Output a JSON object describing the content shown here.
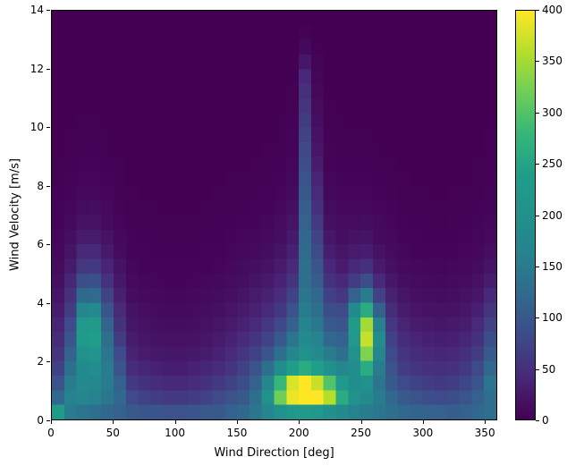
{
  "colors": {
    "background": "#ffffff",
    "axes_edge": "#000000",
    "tick_color": "#000000"
  },
  "chart_data": {
    "type": "heatmap",
    "title": "",
    "xlabel": "Wind Direction [deg]",
    "ylabel": "Wind Velocity [m/s]",
    "x_range": [
      0,
      360
    ],
    "y_range": [
      0,
      14
    ],
    "x_ticks": [
      0,
      50,
      100,
      150,
      200,
      250,
      300,
      350
    ],
    "y_ticks": [
      0,
      2,
      4,
      6,
      8,
      10,
      12,
      14
    ],
    "x_bins": 36,
    "y_bins": 28,
    "x_bin_size_deg": 10,
    "y_bin_size_ms": 0.5,
    "grid": false,
    "legend": "colorbar-right",
    "colorbar": {
      "min": 0,
      "max": 400,
      "ticks": [
        0,
        50,
        100,
        150,
        200,
        250,
        300,
        350,
        400
      ],
      "colormap": "viridis",
      "stops": [
        {
          "t": 0.0,
          "color": "#440154"
        },
        {
          "t": 0.1,
          "color": "#482878"
        },
        {
          "t": 0.2,
          "color": "#3e4a89"
        },
        {
          "t": 0.3,
          "color": "#31688e"
        },
        {
          "t": 0.4,
          "color": "#26828e"
        },
        {
          "t": 0.5,
          "color": "#21918c"
        },
        {
          "t": 0.6,
          "color": "#1f9e89"
        },
        {
          "t": 0.7,
          "color": "#35b779"
        },
        {
          "t": 0.8,
          "color": "#6ece58"
        },
        {
          "t": 0.9,
          "color": "#b5de2b"
        },
        {
          "t": 1.0,
          "color": "#fde725"
        }
      ]
    },
    "values_layout": "rows[0] is lowest velocity bin (0-0.5 m/s) rendered at bottom; columns left-to-right are direction bins 0-360 deg in 10 deg steps",
    "values": [
      [
        230,
        150,
        140,
        130,
        120,
        110,
        100,
        95,
        95,
        90,
        90,
        95,
        100,
        100,
        110,
        120,
        140,
        170,
        200,
        220,
        230,
        220,
        200,
        180,
        160,
        150,
        140,
        130,
        120,
        115,
        110,
        110,
        105,
        110,
        120,
        130
      ],
      [
        120,
        160,
        170,
        160,
        140,
        120,
        80,
        70,
        65,
        60,
        60,
        65,
        70,
        80,
        90,
        100,
        130,
        200,
        320,
        390,
        400,
        400,
        360,
        260,
        200,
        180,
        150,
        120,
        100,
        90,
        85,
        80,
        85,
        95,
        110,
        130
      ],
      [
        90,
        150,
        180,
        175,
        150,
        110,
        60,
        50,
        45,
        40,
        40,
        45,
        50,
        60,
        70,
        85,
        110,
        170,
        280,
        380,
        400,
        370,
        300,
        220,
        190,
        200,
        140,
        100,
        80,
        70,
        65,
        60,
        65,
        75,
        95,
        140
      ],
      [
        70,
        130,
        185,
        190,
        150,
        95,
        45,
        38,
        32,
        30,
        30,
        33,
        38,
        45,
        55,
        70,
        90,
        130,
        190,
        240,
        260,
        240,
        200,
        170,
        190,
        260,
        150,
        90,
        65,
        55,
        50,
        48,
        50,
        60,
        80,
        120
      ],
      [
        55,
        110,
        200,
        210,
        140,
        80,
        35,
        28,
        24,
        22,
        22,
        24,
        28,
        34,
        42,
        55,
        70,
        95,
        130,
        170,
        200,
        185,
        150,
        130,
        200,
        330,
        170,
        80,
        55,
        45,
        40,
        38,
        40,
        48,
        65,
        100
      ],
      [
        45,
        95,
        230,
        240,
        130,
        65,
        28,
        22,
        18,
        16,
        16,
        18,
        21,
        26,
        33,
        42,
        55,
        72,
        100,
        140,
        185,
        165,
        120,
        110,
        220,
        370,
        190,
        70,
        45,
        36,
        32,
        30,
        32,
        38,
        52,
        85
      ],
      [
        36,
        80,
        220,
        230,
        115,
        52,
        22,
        17,
        14,
        12,
        12,
        14,
        16,
        20,
        26,
        33,
        43,
        56,
        78,
        112,
        165,
        145,
        100,
        95,
        230,
        350,
        160,
        58,
        36,
        28,
        25,
        23,
        25,
        30,
        42,
        70
      ],
      [
        28,
        65,
        170,
        180,
        95,
        42,
        17,
        13,
        10,
        9,
        9,
        10,
        12,
        15,
        20,
        26,
        34,
        44,
        60,
        90,
        150,
        130,
        85,
        80,
        180,
        260,
        110,
        45,
        28,
        21,
        18,
        17,
        18,
        23,
        32,
        55
      ],
      [
        21,
        50,
        120,
        125,
        72,
        32,
        12,
        9,
        7,
        6,
        6,
        7,
        9,
        11,
        15,
        20,
        26,
        34,
        46,
        70,
        140,
        118,
        68,
        58,
        110,
        150,
        70,
        33,
        20,
        15,
        13,
        12,
        13,
        16,
        23,
        40
      ],
      [
        15,
        38,
        85,
        88,
        52,
        24,
        9,
        6,
        5,
        4,
        4,
        5,
        6,
        8,
        11,
        14,
        19,
        25,
        35,
        55,
        130,
        105,
        52,
        40,
        65,
        85,
        42,
        23,
        14,
        10,
        9,
        8,
        9,
        11,
        16,
        28
      ],
      [
        11,
        27,
        58,
        60,
        36,
        17,
        6,
        4,
        3,
        3,
        3,
        3,
        4,
        5,
        7,
        10,
        13,
        18,
        26,
        42,
        130,
        95,
        40,
        28,
        40,
        48,
        26,
        15,
        9,
        7,
        6,
        5,
        6,
        7,
        11,
        19
      ],
      [
        8,
        19,
        40,
        41,
        25,
        11,
        4,
        3,
        2,
        2,
        2,
        2,
        3,
        4,
        5,
        7,
        9,
        12,
        19,
        32,
        125,
        82,
        30,
        20,
        26,
        30,
        17,
        10,
        6,
        4,
        4,
        3,
        4,
        5,
        7,
        13
      ],
      [
        5,
        13,
        26,
        27,
        17,
        8,
        3,
        2,
        2,
        1,
        1,
        1,
        2,
        2,
        3,
        5,
        6,
        9,
        14,
        25,
        118,
        72,
        22,
        14,
        17,
        19,
        11,
        7,
        4,
        3,
        2,
        2,
        2,
        3,
        5,
        9
      ],
      [
        4,
        9,
        17,
        18,
        11,
        5,
        2,
        1,
        1,
        1,
        1,
        1,
        1,
        2,
        2,
        3,
        4,
        6,
        10,
        19,
        112,
        62,
        16,
        10,
        11,
        12,
        8,
        5,
        3,
        2,
        2,
        1,
        2,
        2,
        3,
        6
      ],
      [
        3,
        6,
        11,
        12,
        7,
        3,
        1,
        1,
        1,
        0,
        0,
        0,
        1,
        1,
        1,
        2,
        3,
        4,
        7,
        14,
        105,
        52,
        11,
        7,
        7,
        8,
        5,
        3,
        2,
        1,
        1,
        1,
        1,
        1,
        2,
        4
      ],
      [
        2,
        4,
        7,
        8,
        5,
        2,
        1,
        0,
        0,
        0,
        0,
        0,
        0,
        1,
        1,
        1,
        2,
        3,
        5,
        10,
        98,
        44,
        8,
        5,
        5,
        5,
        3,
        2,
        1,
        1,
        1,
        0,
        1,
        1,
        1,
        3
      ],
      [
        1,
        3,
        5,
        5,
        3,
        1,
        0,
        0,
        0,
        0,
        0,
        0,
        0,
        0,
        1,
        1,
        1,
        2,
        3,
        7,
        92,
        36,
        6,
        3,
        3,
        3,
        2,
        1,
        1,
        0,
        0,
        0,
        0,
        0,
        1,
        2
      ],
      [
        1,
        2,
        3,
        3,
        2,
        1,
        0,
        0,
        0,
        0,
        0,
        0,
        0,
        0,
        0,
        0,
        1,
        1,
        2,
        5,
        85,
        28,
        4,
        2,
        2,
        2,
        1,
        1,
        0,
        0,
        0,
        0,
        0,
        0,
        1,
        1
      ],
      [
        0,
        1,
        2,
        2,
        1,
        0,
        0,
        0,
        0,
        0,
        0,
        0,
        0,
        0,
        0,
        0,
        0,
        1,
        1,
        4,
        78,
        22,
        3,
        1,
        1,
        1,
        1,
        0,
        0,
        0,
        0,
        0,
        0,
        0,
        0,
        1
      ],
      [
        0,
        1,
        1,
        1,
        1,
        0,
        0,
        0,
        0,
        0,
        0,
        0,
        0,
        0,
        0,
        0,
        0,
        0,
        1,
        3,
        70,
        17,
        2,
        1,
        1,
        1,
        0,
        0,
        0,
        0,
        0,
        0,
        0,
        0,
        0,
        1
      ],
      [
        0,
        0,
        1,
        1,
        0,
        0,
        0,
        0,
        0,
        0,
        0,
        0,
        0,
        0,
        0,
        0,
        0,
        0,
        1,
        2,
        62,
        13,
        1,
        1,
        0,
        0,
        0,
        0,
        0,
        0,
        0,
        0,
        0,
        0,
        0,
        0
      ],
      [
        0,
        0,
        0,
        0,
        0,
        0,
        0,
        0,
        0,
        0,
        0,
        0,
        0,
        0,
        0,
        0,
        0,
        0,
        0,
        1,
        55,
        10,
        1,
        0,
        0,
        0,
        0,
        0,
        0,
        0,
        0,
        0,
        0,
        0,
        0,
        0
      ],
      [
        0,
        0,
        0,
        0,
        0,
        0,
        0,
        0,
        0,
        0,
        0,
        0,
        0,
        0,
        0,
        0,
        0,
        0,
        0,
        1,
        48,
        7,
        0,
        0,
        0,
        0,
        0,
        0,
        0,
        0,
        0,
        0,
        0,
        0,
        0,
        0
      ],
      [
        0,
        0,
        0,
        0,
        0,
        0,
        0,
        0,
        0,
        0,
        0,
        0,
        0,
        0,
        0,
        0,
        0,
        0,
        0,
        0,
        40,
        5,
        0,
        0,
        0,
        0,
        0,
        0,
        0,
        0,
        0,
        0,
        0,
        0,
        0,
        0
      ],
      [
        0,
        0,
        0,
        0,
        0,
        0,
        0,
        0,
        0,
        0,
        0,
        0,
        0,
        0,
        0,
        0,
        0,
        0,
        0,
        0,
        22,
        3,
        0,
        0,
        0,
        0,
        0,
        0,
        0,
        0,
        0,
        0,
        0,
        0,
        0,
        0
      ],
      [
        0,
        0,
        0,
        0,
        0,
        0,
        0,
        0,
        0,
        0,
        0,
        0,
        0,
        0,
        0,
        0,
        0,
        0,
        0,
        0,
        8,
        1,
        0,
        0,
        0,
        0,
        0,
        0,
        0,
        0,
        0,
        0,
        0,
        0,
        0,
        0
      ],
      [
        0,
        0,
        0,
        0,
        0,
        0,
        0,
        0,
        0,
        0,
        0,
        0,
        0,
        0,
        0,
        0,
        0,
        0,
        0,
        0,
        2,
        0,
        0,
        0,
        0,
        0,
        0,
        0,
        0,
        0,
        0,
        0,
        0,
        0,
        0,
        0
      ],
      [
        0,
        0,
        0,
        0,
        0,
        0,
        0,
        0,
        0,
        0,
        0,
        0,
        0,
        0,
        0,
        0,
        0,
        0,
        0,
        0,
        0,
        0,
        0,
        0,
        0,
        0,
        0,
        0,
        0,
        0,
        0,
        0,
        0,
        0,
        0,
        0
      ]
    ]
  }
}
